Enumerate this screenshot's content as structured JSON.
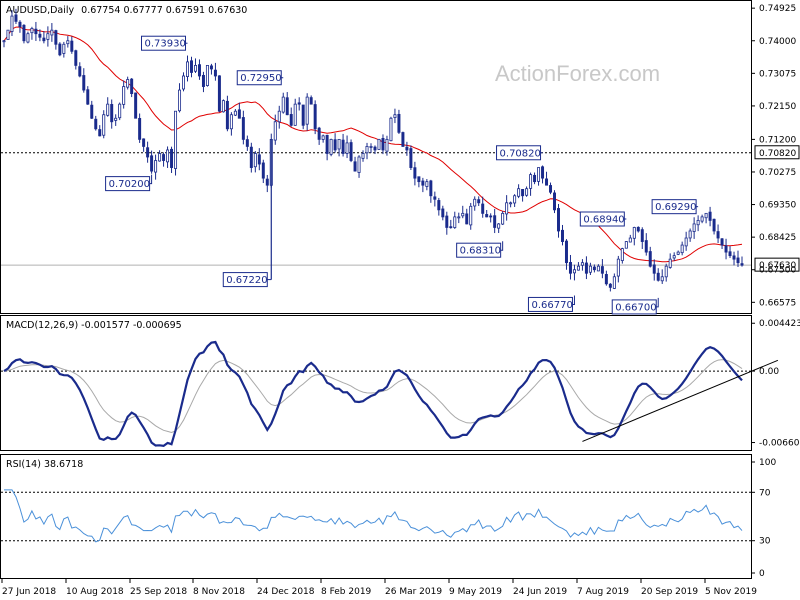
{
  "chart_data": {
    "type": "candlestick",
    "instrument": "AUDUSD,Daily",
    "ohlc_readout": "0.67754 0.67777 0.67591 0.67630",
    "watermark": "ActionForex.com",
    "x_tick_labels": [
      "27 Jun 2018",
      "10 Aug 2018",
      "25 Sep 2018",
      "8 Nov 2018",
      "24 Dec 2018",
      "8 Feb 2019",
      "26 Mar 2019",
      "9 May 2019",
      "24 Jun 2019",
      "7 Aug 2019",
      "20 Sep 2019",
      "5 Nov 2019"
    ],
    "price_panel": {
      "y_ticks": [
        "0.74925",
        "0.74000",
        "0.73075",
        "0.72150",
        "0.71200",
        "0.70275",
        "0.69350",
        "0.68425",
        "0.67500",
        "0.66575"
      ],
      "ylim": [
        0.663,
        0.751
      ],
      "last_price": 0.6763,
      "last_price_label": "0.67630",
      "hline_value": 0.7082,
      "hline_label": "0.70820",
      "callouts": [
        {
          "label": "0.73930",
          "value": 0.7393,
          "index": 46
        },
        {
          "label": "0.70200",
          "value": 0.702,
          "index": 37
        },
        {
          "label": "0.72950",
          "value": 0.7295,
          "index": 70
        },
        {
          "label": "0.67220",
          "value": 0.6722,
          "index": 67
        },
        {
          "label": "0.70820",
          "value": 0.7082,
          "index": 135
        },
        {
          "label": "0.68310",
          "value": 0.6831,
          "index": 125
        },
        {
          "label": "0.68940",
          "value": 0.6894,
          "index": 156
        },
        {
          "label": "0.66770",
          "value": 0.6677,
          "index": 143
        },
        {
          "label": "0.69290",
          "value": 0.6929,
          "index": 174
        },
        {
          "label": "0.66700",
          "value": 0.667,
          "index": 164
        }
      ],
      "close_series": [
        0.74,
        0.743,
        0.747,
        0.7455,
        0.744,
        0.74,
        0.742,
        0.7435,
        0.742,
        0.741,
        0.74,
        0.742,
        0.743,
        0.739,
        0.736,
        0.739,
        0.74,
        0.737,
        0.733,
        0.73,
        0.726,
        0.722,
        0.718,
        0.715,
        0.713,
        0.719,
        0.722,
        0.717,
        0.718,
        0.722,
        0.727,
        0.729,
        0.725,
        0.718,
        0.712,
        0.71,
        0.707,
        0.703,
        0.706,
        0.708,
        0.706,
        0.709,
        0.704,
        0.72,
        0.726,
        0.73,
        0.734,
        0.731,
        0.733,
        0.73,
        0.727,
        0.733,
        0.732,
        0.73,
        0.72,
        0.723,
        0.715,
        0.719,
        0.72,
        0.718,
        0.712,
        0.71,
        0.704,
        0.708,
        0.705,
        0.701,
        0.699,
        0.712,
        0.717,
        0.72,
        0.724,
        0.719,
        0.716,
        0.722,
        0.722,
        0.716,
        0.724,
        0.722,
        0.715,
        0.712,
        0.713,
        0.708,
        0.712,
        0.709,
        0.712,
        0.708,
        0.711,
        0.706,
        0.703,
        0.707,
        0.708,
        0.71,
        0.71,
        0.709,
        0.712,
        0.709,
        0.712,
        0.718,
        0.719,
        0.714,
        0.71,
        0.709,
        0.704,
        0.701,
        0.7,
        0.699,
        0.7,
        0.696,
        0.695,
        0.692,
        0.69,
        0.687,
        0.687,
        0.69,
        0.69,
        0.691,
        0.688,
        0.693,
        0.695,
        0.694,
        0.691,
        0.69,
        0.69,
        0.687,
        0.688,
        0.691,
        0.694,
        0.694,
        0.696,
        0.698,
        0.696,
        0.698,
        0.702,
        0.7,
        0.704,
        0.701,
        0.699,
        0.697,
        0.692,
        0.686,
        0.683,
        0.677,
        0.674,
        0.675,
        0.676,
        0.677,
        0.674,
        0.676,
        0.675,
        0.676,
        0.674,
        0.671,
        0.67,
        0.673,
        0.678,
        0.681,
        0.683,
        0.684,
        0.687,
        0.686,
        0.683,
        0.68,
        0.676,
        0.674,
        0.672,
        0.673,
        0.676,
        0.678,
        0.679,
        0.68,
        0.682,
        0.684,
        0.686,
        0.688,
        0.689,
        0.69,
        0.691,
        0.689,
        0.686,
        0.684,
        0.682,
        0.68,
        0.679,
        0.678,
        0.677,
        0.6763
      ],
      "ma_color": "#e00000",
      "candle_color": "#1a2b8c"
    },
    "macd_panel": {
      "label": "MACD(12,26,9) -0.001577 -0.000695",
      "y_ticks": [
        "0.004423",
        "0.00",
        "-0.006603"
      ],
      "ylim": [
        -0.0072,
        0.005
      ],
      "trendline": {
        "from": [
          145,
          -0.0065
        ],
        "to": [
          194,
          0.001
        ]
      },
      "macd_color": "#1a2b8c",
      "signal_color": "#a9a9a9"
    },
    "rsi_panel": {
      "label": "RSI(14) 38.6718",
      "y_ticks": [
        "100",
        "70",
        "30",
        "0"
      ],
      "ylim": [
        0,
        100
      ],
      "levels": [
        70,
        30
      ],
      "line_color": "#4a90d9"
    }
  }
}
